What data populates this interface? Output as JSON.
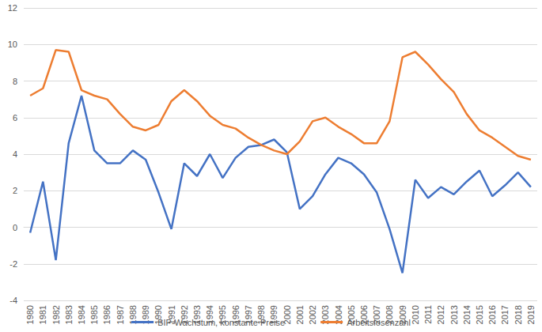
{
  "chart_data": {
    "type": "line",
    "categories": [
      "1980",
      "1981",
      "1982",
      "1983",
      "1984",
      "1985",
      "1986",
      "1987",
      "1988",
      "1989",
      "1990",
      "1991",
      "1992",
      "1993",
      "1994",
      "1995",
      "1996",
      "1997",
      "1998",
      "1999",
      "2000",
      "2001",
      "2002",
      "2003",
      "2004",
      "2005",
      "2006",
      "2007",
      "2008",
      "2009",
      "2010",
      "2011",
      "2012",
      "2013",
      "2014",
      "2015",
      "2016",
      "2017",
      "2018",
      "2019"
    ],
    "series": [
      {
        "name": "BIP-Wachstum, konstante Preise",
        "color": "#4472c4",
        "values": [
          -0.3,
          2.5,
          -1.8,
          4.6,
          7.2,
          4.2,
          3.5,
          3.5,
          4.2,
          3.7,
          1.9,
          -0.1,
          3.5,
          2.8,
          4.0,
          2.7,
          3.8,
          4.4,
          4.5,
          4.8,
          4.1,
          1.0,
          1.7,
          2.9,
          3.8,
          3.5,
          2.9,
          1.9,
          -0.1,
          -2.5,
          2.6,
          1.6,
          2.2,
          1.8,
          2.5,
          3.1,
          1.7,
          2.3,
          3.0,
          2.2
        ]
      },
      {
        "name": "Arbeitslosenzahl",
        "color": "#ed7d31",
        "values": [
          7.2,
          7.6,
          9.7,
          9.6,
          7.5,
          7.2,
          7.0,
          6.2,
          5.5,
          5.3,
          5.6,
          6.9,
          7.5,
          6.9,
          6.1,
          5.6,
          5.4,
          4.9,
          4.5,
          4.2,
          4.0,
          4.7,
          5.8,
          6.0,
          5.5,
          5.1,
          4.6,
          4.6,
          5.8,
          9.3,
          9.6,
          8.9,
          8.1,
          7.4,
          6.2,
          5.3,
          4.9,
          4.4,
          3.9,
          3.7
        ]
      }
    ],
    "ylim": [
      -4,
      12
    ],
    "yticks": [
      -4,
      -2,
      0,
      2,
      4,
      6,
      8,
      10,
      12
    ],
    "grid": true,
    "legend": "bottom"
  }
}
